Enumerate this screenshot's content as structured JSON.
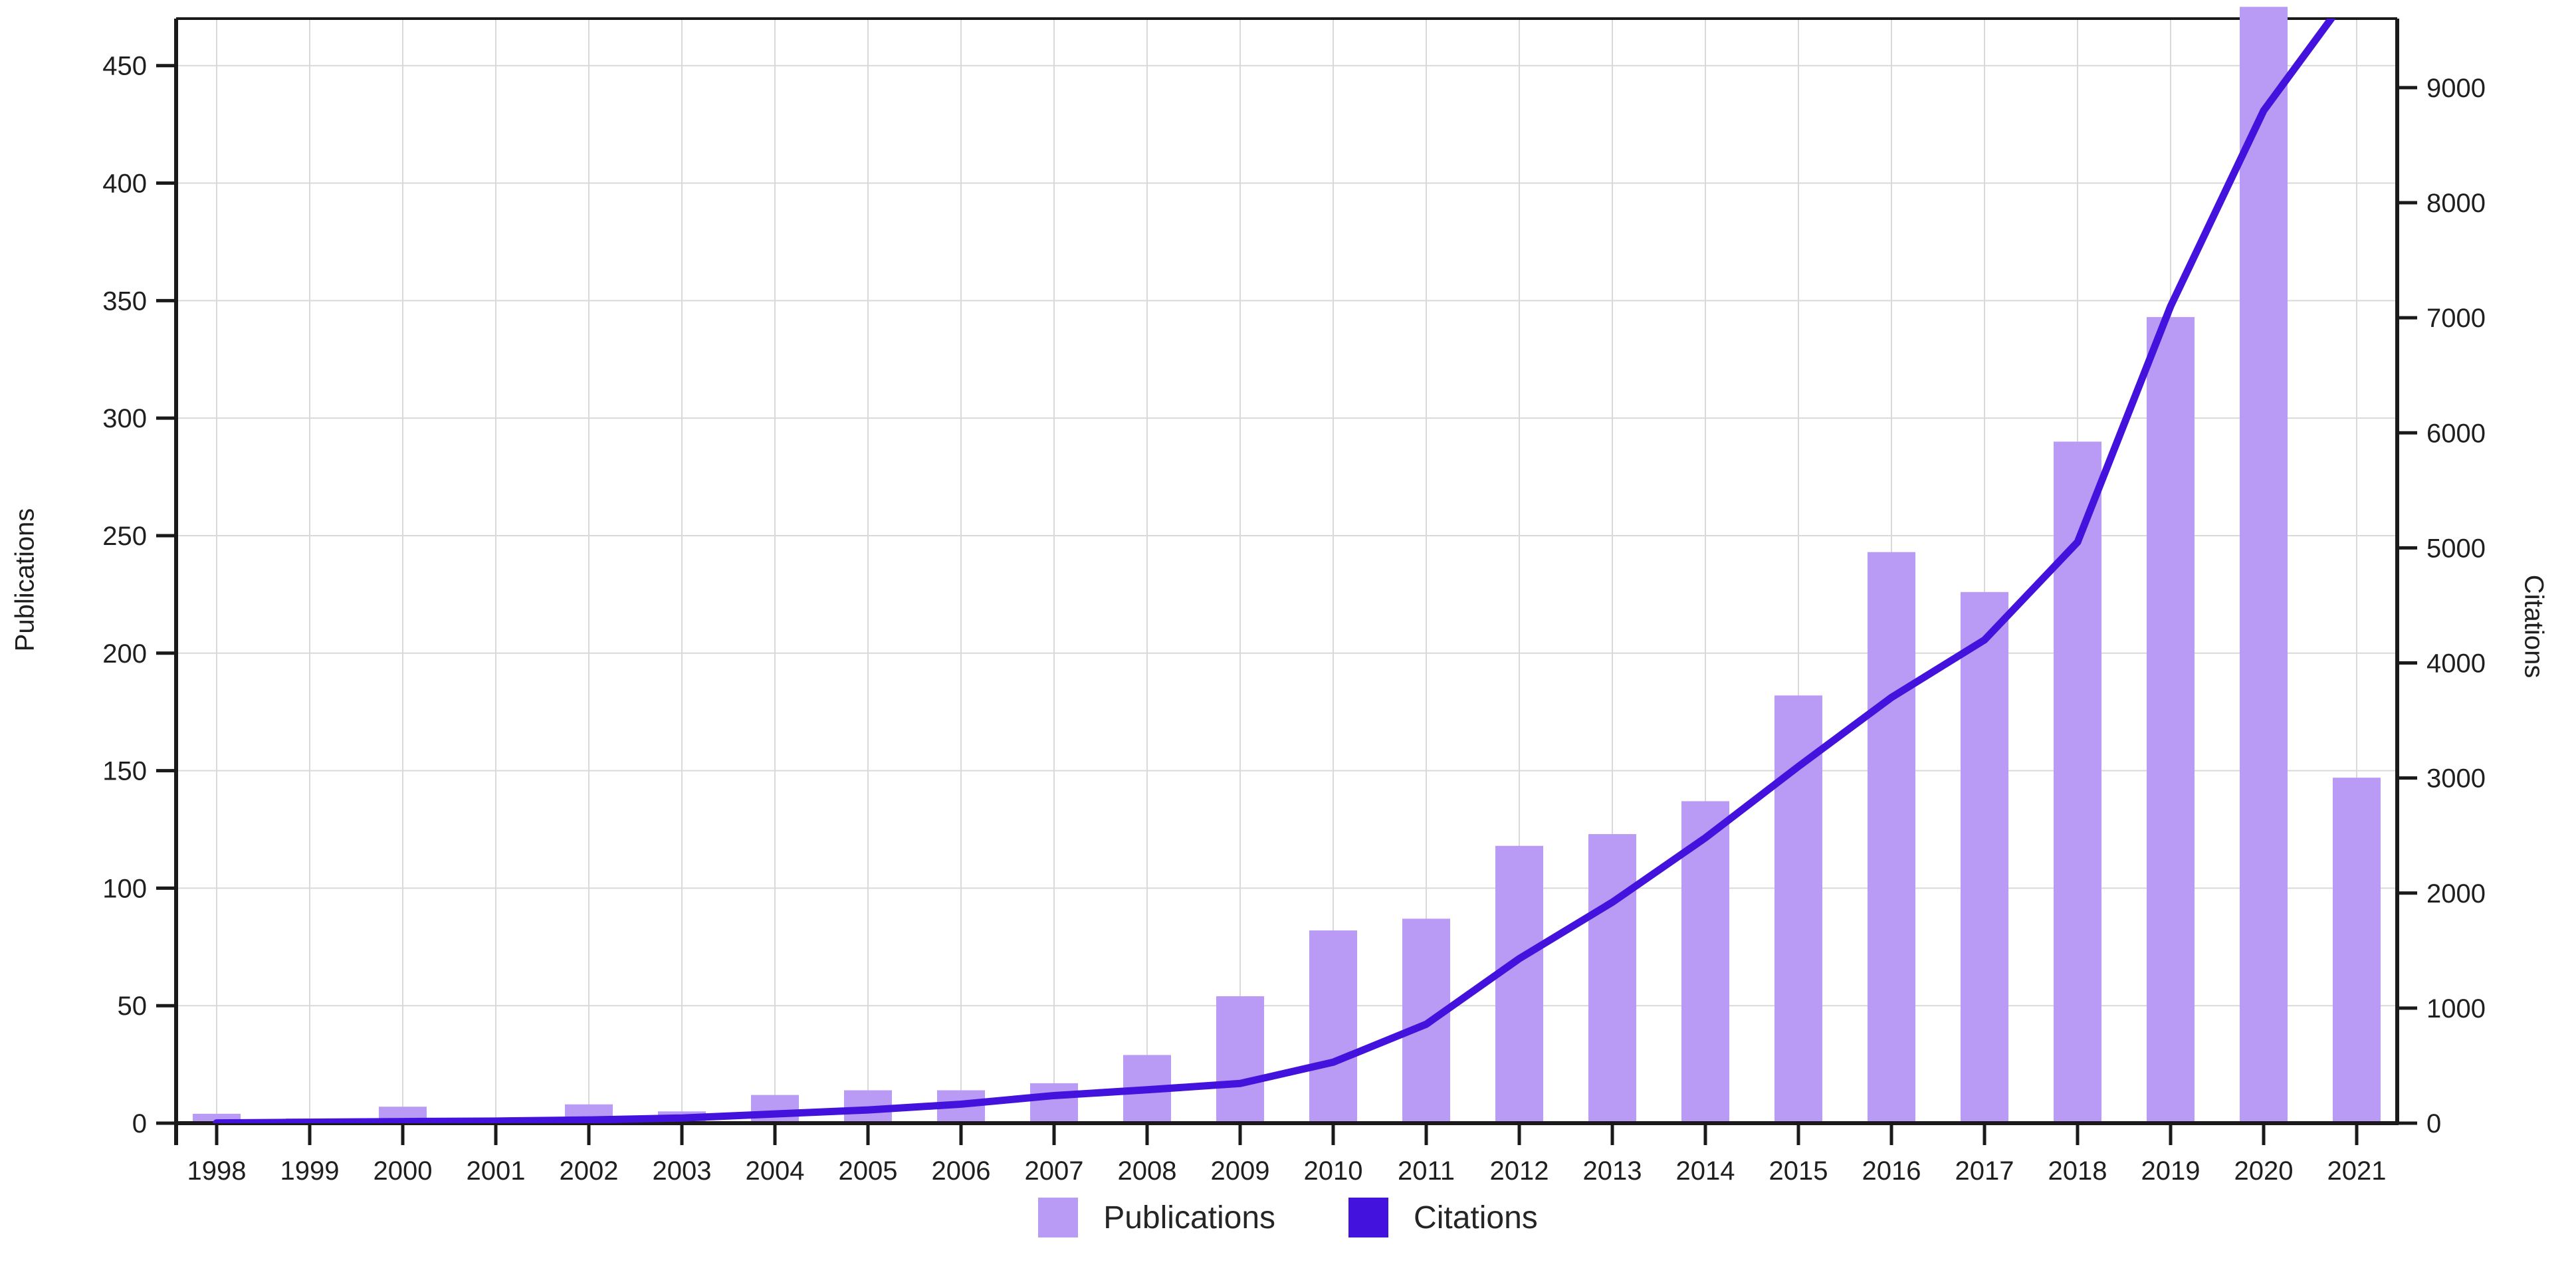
{
  "axes": {
    "left_title": "Publications",
    "right_title": "Citations"
  },
  "legend": {
    "publications_label": "Publications",
    "citations_label": "Citations"
  },
  "colors": {
    "bar": "#b99af5",
    "line": "#4412dd",
    "axis": "#1a1a1a",
    "grid": "#d9d9d9",
    "tick_text": "#1f1f1f",
    "background": "#ffffff"
  },
  "chart_data": {
    "type": "bar",
    "subtype": "dual-axis bar + line",
    "title": "",
    "xlabel": "",
    "categories": [
      "1998",
      "1999",
      "2000",
      "2001",
      "2002",
      "2003",
      "2004",
      "2005",
      "2006",
      "2007",
      "2008",
      "2009",
      "2010",
      "2011",
      "2012",
      "2013",
      "2014",
      "2015",
      "2016",
      "2017",
      "2018",
      "2019",
      "2020",
      "2021"
    ],
    "series": [
      {
        "name": "Publications",
        "type": "bar",
        "axis": "left",
        "color": "#b99af5",
        "values": [
          4,
          2,
          7,
          1,
          8,
          5,
          12,
          14,
          14,
          17,
          29,
          54,
          82,
          87,
          118,
          123,
          137,
          182,
          243,
          226,
          290,
          343,
          475,
          147
        ]
      },
      {
        "name": "Citations",
        "type": "line",
        "axis": "right",
        "color": "#4412dd",
        "values": [
          2,
          8,
          14,
          18,
          28,
          45,
          80,
          115,
          165,
          240,
          290,
          345,
          530,
          860,
          1430,
          1920,
          2480,
          3100,
          3700,
          4200,
          5050,
          7100,
          8800,
          9900
        ]
      }
    ],
    "left_axis": {
      "label": "Publications",
      "tick_min": 0,
      "tick_max": 450,
      "tick_step": 50,
      "plot_max": 470,
      "ticks": [
        0,
        50,
        100,
        150,
        200,
        250,
        300,
        350,
        400,
        450
      ]
    },
    "right_axis": {
      "label": "Citations",
      "tick_min": 0,
      "tick_max": 9000,
      "tick_step": 1000,
      "plot_max": 9600,
      "ticks": [
        0,
        1000,
        2000,
        3000,
        4000,
        5000,
        6000,
        7000,
        8000,
        9000
      ]
    },
    "grid": true,
    "legend_position": "bottom-center",
    "notes": "2020 Publications bar and 2021 Citations line value are clipped at the top of the plot area"
  }
}
